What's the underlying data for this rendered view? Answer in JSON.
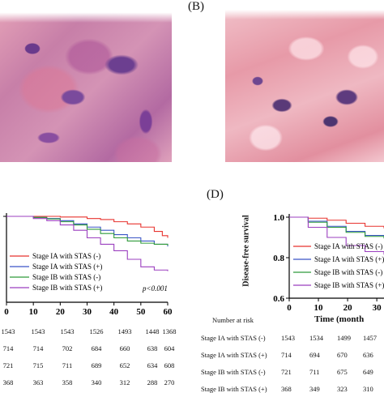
{
  "panels": {
    "A": {
      "label": ""
    },
    "B": {
      "label": "(B)"
    },
    "C": {
      "label": ""
    },
    "D": {
      "label": "(D)"
    }
  },
  "colors": {
    "ia_neg": "#e8332f",
    "ia_pos": "#3a55c6",
    "ib_neg": "#2f9a3a",
    "ib_pos": "#9b3fbf"
  },
  "chart_data": [
    {
      "type": "line",
      "panel": "C",
      "title": "",
      "xlabel": "",
      "ylabel": "",
      "xlim": [
        0,
        60
      ],
      "ylim": [
        0.6,
        1.0
      ],
      "x_ticks": [
        "0",
        "10",
        "20",
        "30",
        "40",
        "50",
        "60"
      ],
      "annotation": "p<0.001",
      "series": [
        {
          "name": "Stage IA with STAS (-)",
          "color": "#e8332f",
          "x": [
            0,
            10,
            20,
            30,
            35,
            40,
            45,
            50,
            55,
            58,
            60
          ],
          "y": [
            1.0,
            1.0,
            0.997,
            0.99,
            0.985,
            0.975,
            0.965,
            0.95,
            0.93,
            0.91,
            0.9
          ]
        },
        {
          "name": "Stage IA with STAS (+)",
          "color": "#3a55c6",
          "x": [
            0,
            10,
            15,
            20,
            25,
            30,
            35,
            40,
            45,
            50,
            55,
            60
          ],
          "y": [
            1.0,
            0.995,
            0.99,
            0.98,
            0.965,
            0.95,
            0.935,
            0.915,
            0.9,
            0.885,
            0.87,
            0.86
          ]
        },
        {
          "name": "Stage IB with STAS (-)",
          "color": "#2f9a3a",
          "x": [
            0,
            10,
            15,
            20,
            25,
            30,
            35,
            40,
            45,
            50,
            55,
            60
          ],
          "y": [
            1.0,
            0.995,
            0.988,
            0.975,
            0.96,
            0.94,
            0.92,
            0.9,
            0.885,
            0.875,
            0.87,
            0.865
          ]
        },
        {
          "name": "Stage IB with STAS (+)",
          "color": "#9b3fbf",
          "x": [
            0,
            10,
            15,
            20,
            25,
            30,
            35,
            40,
            45,
            50,
            55,
            60
          ],
          "y": [
            1.0,
            0.99,
            0.98,
            0.96,
            0.935,
            0.9,
            0.87,
            0.84,
            0.8,
            0.765,
            0.75,
            0.745
          ]
        }
      ],
      "number_at_risk": {
        "title": "",
        "rows": [
          {
            "label": "",
            "values": [
              "1543",
              "1543",
              "1543",
              "1526",
              "1493",
              "1448",
              "1368"
            ]
          },
          {
            "label": "",
            "values": [
              "714",
              "714",
              "702",
              "684",
              "660",
              "638",
              "604"
            ]
          },
          {
            "label": "",
            "values": [
              "721",
              "715",
              "711",
              "689",
              "652",
              "634",
              "608"
            ]
          },
          {
            "label": "",
            "values": [
              "368",
              "363",
              "358",
              "340",
              "312",
              "288",
              "270"
            ]
          }
        ]
      }
    },
    {
      "type": "line",
      "panel": "D",
      "title": "",
      "xlabel": "Time (month",
      "ylabel": "Disease-free survival",
      "xlim": [
        0,
        25
      ],
      "ylim": [
        0.6,
        1.0
      ],
      "x_ticks": [
        "0",
        "10",
        "20",
        "30"
      ],
      "y_ticks": [
        "1.0",
        "0.8",
        "0.6"
      ],
      "series": [
        {
          "name": "Stage IA with STAS (-)",
          "color": "#e8332f",
          "x": [
            0,
            5,
            10,
            15,
            20,
            25
          ],
          "y": [
            1.0,
            0.995,
            0.985,
            0.97,
            0.955,
            0.945
          ]
        },
        {
          "name": "Stage IA with STAS (+)",
          "color": "#3a55c6",
          "x": [
            0,
            5,
            10,
            15,
            20,
            25
          ],
          "y": [
            1.0,
            0.98,
            0.955,
            0.93,
            0.91,
            0.9
          ]
        },
        {
          "name": "Stage IB with STAS (-)",
          "color": "#2f9a3a",
          "x": [
            0,
            5,
            10,
            15,
            20,
            25
          ],
          "y": [
            1.0,
            0.975,
            0.95,
            0.925,
            0.905,
            0.895
          ]
        },
        {
          "name": "Stage IB with STAS (+)",
          "color": "#9b3fbf",
          "x": [
            0,
            5,
            10,
            15,
            20,
            25
          ],
          "y": [
            1.0,
            0.95,
            0.9,
            0.86,
            0.83,
            0.815
          ]
        }
      ],
      "number_at_risk": {
        "title": "Number at risk",
        "rows": [
          {
            "label": "Stage IA with STAS (-)",
            "values": [
              "1543",
              "1534",
              "1499",
              "1457"
            ]
          },
          {
            "label": "Stage IA with STAS (+)",
            "values": [
              "714",
              "694",
              "670",
              "636"
            ]
          },
          {
            "label": "Stage IB with STAS (-)",
            "values": [
              "721",
              "711",
              "675",
              "649"
            ]
          },
          {
            "label": "Stage IB with STAS (+)",
            "values": [
              "368",
              "349",
              "323",
              "310"
            ]
          }
        ]
      }
    }
  ]
}
